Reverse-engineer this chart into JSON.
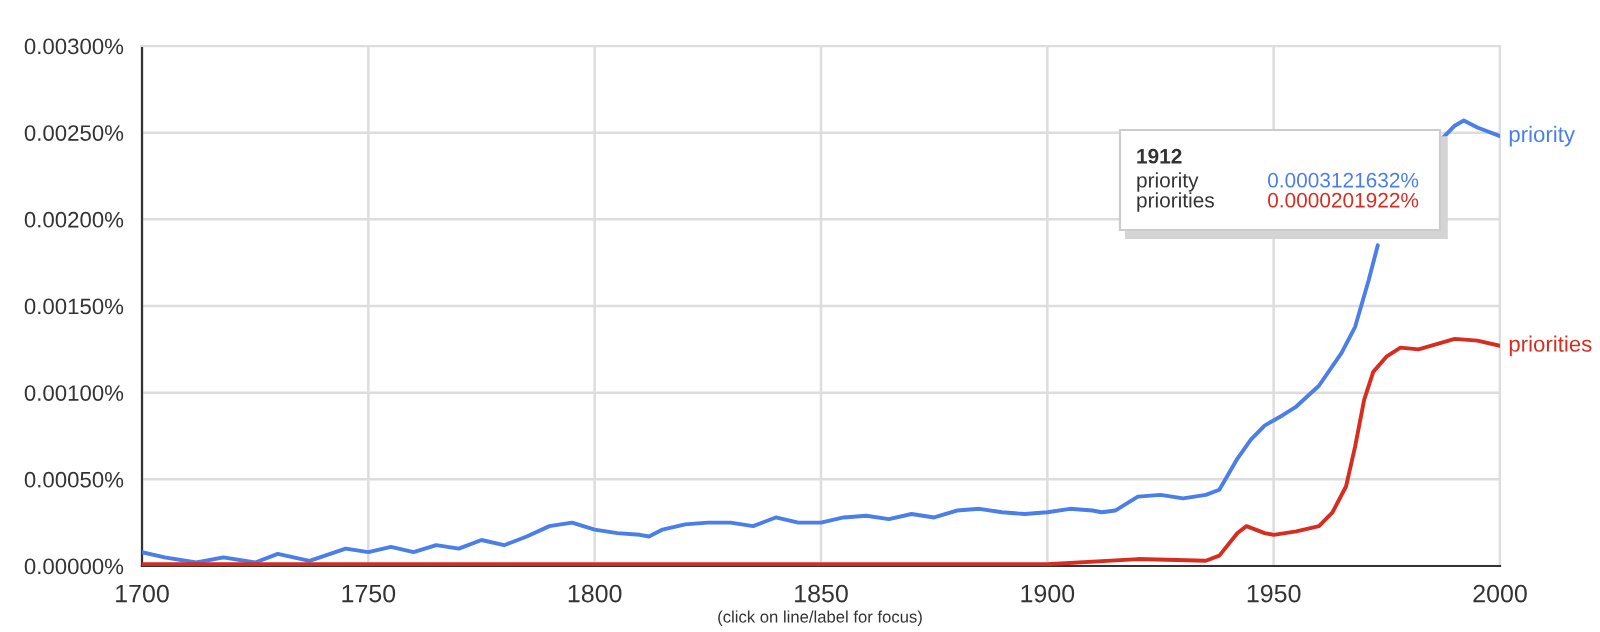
{
  "chart_data": {
    "type": "line",
    "xlim": [
      1700,
      2000
    ],
    "xticks": [
      1700,
      1750,
      1800,
      1850,
      1900,
      1950,
      2000
    ],
    "ylim": [
      0,
      0.003
    ],
    "yticks": [
      {
        "value": 0,
        "label": "0.00000%"
      },
      {
        "value": 0.0005,
        "label": "0.00050%"
      },
      {
        "value": 0.001,
        "label": "0.00100%"
      },
      {
        "value": 0.0015,
        "label": "0.00150%"
      },
      {
        "value": 0.002,
        "label": "0.00200%"
      },
      {
        "value": 0.0025,
        "label": "0.00250%"
      },
      {
        "value": 0.003,
        "label": "0.00300%"
      }
    ],
    "grid": true,
    "legend": false,
    "series": [
      {
        "name": "priority",
        "color": "#4a7ee8",
        "x": [
          1700,
          1705,
          1712,
          1718,
          1725,
          1730,
          1737,
          1745,
          1750,
          1755,
          1760,
          1765,
          1770,
          1775,
          1780,
          1785,
          1790,
          1795,
          1800,
          1805,
          1810,
          1812,
          1815,
          1820,
          1825,
          1830,
          1835,
          1840,
          1845,
          1850,
          1855,
          1860,
          1865,
          1870,
          1875,
          1880,
          1885,
          1890,
          1895,
          1900,
          1905,
          1910,
          1912,
          1915,
          1920,
          1925,
          1930,
          1935,
          1938,
          1942,
          1945,
          1948,
          1952,
          1955,
          1960,
          1965,
          1968,
          1971,
          1973,
          1980,
          1987,
          1990,
          1992,
          1995,
          2000
        ],
        "values": [
          8e-05,
          5e-05,
          2e-05,
          5e-05,
          2e-05,
          7e-05,
          3e-05,
          0.0001,
          8e-05,
          0.00011,
          8e-05,
          0.00012,
          0.0001,
          0.00015,
          0.00012,
          0.00017,
          0.00023,
          0.00025,
          0.00021,
          0.00019,
          0.00018,
          0.00017,
          0.00021,
          0.00024,
          0.00025,
          0.00025,
          0.00023,
          0.00028,
          0.00025,
          0.00025,
          0.00028,
          0.00029,
          0.00027,
          0.0003,
          0.00028,
          0.00032,
          0.00033,
          0.00031,
          0.0003,
          0.00031,
          0.00033,
          0.00032,
          0.00031,
          0.00032,
          0.0004,
          0.00041,
          0.00039,
          0.00041,
          0.00044,
          0.00062,
          0.00073,
          0.00081,
          0.00087,
          0.00092,
          0.00104,
          0.00123,
          0.00138,
          0.00165,
          0.00185,
          null,
          0.00246,
          0.00254,
          0.00257,
          0.00253,
          0.00248
        ]
      },
      {
        "name": "priorities",
        "color": "#d62d20",
        "x": [
          1700,
          1750,
          1800,
          1850,
          1900,
          1920,
          1935,
          1938,
          1942,
          1944,
          1948,
          1950,
          1955,
          1960,
          1963,
          1966,
          1968,
          1970,
          1972,
          1975,
          1978,
          1982,
          1986,
          1990,
          1995,
          2000
        ],
        "values": [
          1e-05,
          1e-05,
          1e-05,
          1e-05,
          1e-05,
          4e-05,
          3e-05,
          6e-05,
          0.00019,
          0.00023,
          0.00019,
          0.00018,
          0.0002,
          0.00023,
          0.00031,
          0.00046,
          0.00069,
          0.00096,
          0.00112,
          0.00121,
          0.00126,
          0.00125,
          0.00128,
          0.00131,
          0.0013,
          0.00127
        ]
      }
    ],
    "annotations": [
      "1912",
      "priority",
      "priorities",
      "0.0003121632%",
      "0.0000201922%",
      "(click on line/label for focus)"
    ]
  }
}
